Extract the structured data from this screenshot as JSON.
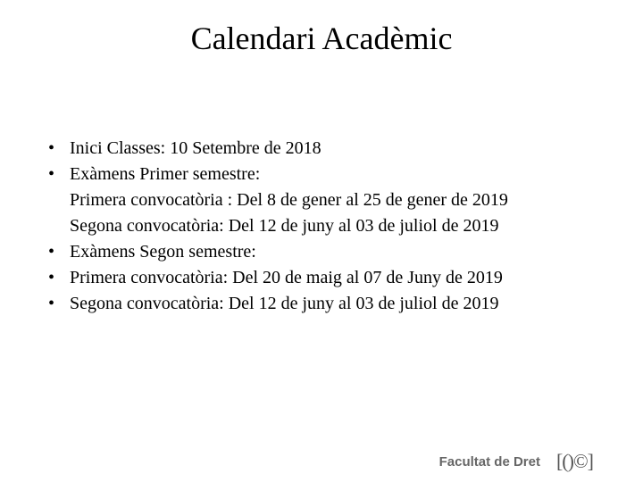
{
  "title": "Calendari Acadèmic",
  "bullets": {
    "b0": {
      "text": "Inici Classes: 10 Setembre de 2018"
    },
    "b1": {
      "text": "Exàmens  Primer semestre:",
      "sub0": "Primera convocatòria : Del 8 de gener al 25 de gener de 2019",
      "sub1": "Segona convocatòria:  Del 12 de juny al  03 de juliol de 2019"
    },
    "b2": {
      "text": "Exàmens Segon semestre:"
    },
    "b3": {
      "text": "Primera convocatòria: Del 20 de maig al 07 de Juny de 2019"
    },
    "b4": {
      "text": "Segona  convocatòria: Del 12  de juny al 03 de juliol de 2019"
    }
  },
  "footer": {
    "label": "Facultat de Dret",
    "glyph": "[()©]"
  },
  "colors": {
    "text": "#000000",
    "background": "#ffffff",
    "footer_text": "#666666"
  },
  "fonts": {
    "body_family": "Times New Roman",
    "body_size_pt": 20,
    "title_size_pt": 36,
    "footer_family": "Verdana",
    "footer_size_pt": 15
  }
}
